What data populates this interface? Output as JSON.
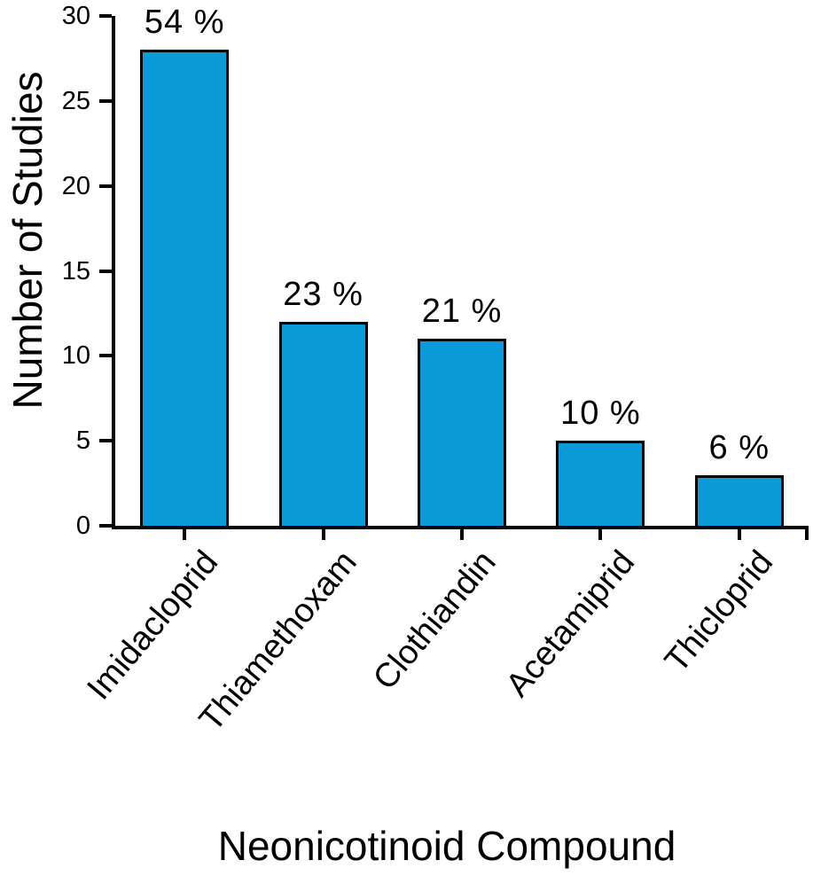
{
  "chart_data": {
    "type": "bar",
    "title": "",
    "xlabel": "Neonicotinoid Compound",
    "ylabel": "Number of Studies",
    "categories": [
      "Imidacloprid",
      "Thiamethoxam",
      "Clothiandin",
      "Acetamiprid",
      "Thicloprid"
    ],
    "values": [
      28,
      12,
      11,
      5,
      3
    ],
    "bar_labels": [
      "54 %",
      "23 %",
      "21 %",
      "10 %",
      "6 %"
    ],
    "ylim": [
      0,
      30
    ],
    "yticks": [
      0,
      5,
      10,
      15,
      20,
      25,
      30
    ],
    "grid": false,
    "legend": "none",
    "colors": {
      "bar_fill": "#0a9bd8",
      "bar_border": "#000000",
      "axis": "#000000",
      "text": "#000000",
      "background": "#ffffff"
    }
  }
}
